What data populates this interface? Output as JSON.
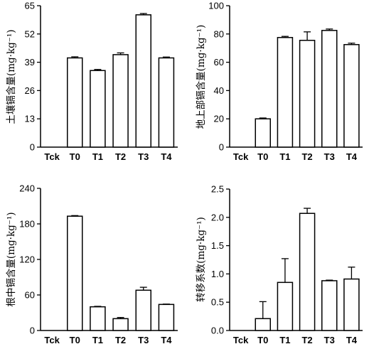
{
  "chart_data": [
    {
      "id": "soil",
      "type": "bar",
      "categories": [
        "Tck",
        "T0",
        "T1",
        "T2",
        "T3",
        "T4"
      ],
      "values": [
        0,
        41,
        35.2,
        42.5,
        60.8,
        41
      ],
      "errors": [
        0,
        0.5,
        0.5,
        0.8,
        0.6,
        0.4
      ],
      "ylabel": "土壤镉含量(mg·kg⁻¹)",
      "ylim": [
        0,
        65
      ],
      "yticks": [
        0,
        13,
        26,
        39,
        52,
        65
      ],
      "ytick_labels": [
        "0",
        "13",
        "26",
        "39",
        "52",
        "65"
      ]
    },
    {
      "id": "shoot",
      "type": "bar",
      "categories": [
        "Tck",
        "T0",
        "T1",
        "T2",
        "T3",
        "T4"
      ],
      "values": [
        0,
        20,
        77.5,
        75.5,
        82.5,
        72.5
      ],
      "errors": [
        0,
        0.6,
        0.8,
        6.0,
        1.0,
        1.0
      ],
      "ylabel": "地上部镉含量(mg·kg⁻¹)",
      "ylim": [
        0,
        100
      ],
      "yticks": [
        0,
        20,
        40,
        60,
        80,
        100
      ],
      "ytick_labels": [
        "0",
        "20",
        "40",
        "60",
        "80",
        "100"
      ]
    },
    {
      "id": "root",
      "type": "bar",
      "categories": [
        "Tck",
        "T0",
        "T1",
        "T2",
        "T3",
        "T4"
      ],
      "values": [
        0,
        193,
        40,
        20,
        68,
        44
      ],
      "errors": [
        0,
        1.0,
        0.8,
        2.0,
        5.0,
        0.6
      ],
      "ylabel": "根中镉含量(mg·kg⁻¹)",
      "ylim": [
        0,
        240
      ],
      "yticks": [
        0,
        60,
        120,
        180,
        240
      ],
      "ytick_labels": [
        "0",
        "60",
        "120",
        "180",
        "240"
      ]
    },
    {
      "id": "transfer",
      "type": "bar",
      "categories": [
        "Tck",
        "T0",
        "T1",
        "T2",
        "T3",
        "T4"
      ],
      "values": [
        0,
        0.21,
        0.85,
        2.07,
        0.88,
        0.91
      ],
      "errors": [
        0,
        0.3,
        0.42,
        0.09,
        0.01,
        0.21
      ],
      "ylabel": "转移系数(mg·kg⁻¹)",
      "ylim": [
        0,
        2.5
      ],
      "yticks": [
        0,
        0.5,
        1,
        1.5,
        2,
        2.5
      ],
      "ytick_labels": [
        "0.0",
        "0.5",
        "1.0",
        "1.5",
        "2.0",
        "2.5"
      ]
    }
  ]
}
